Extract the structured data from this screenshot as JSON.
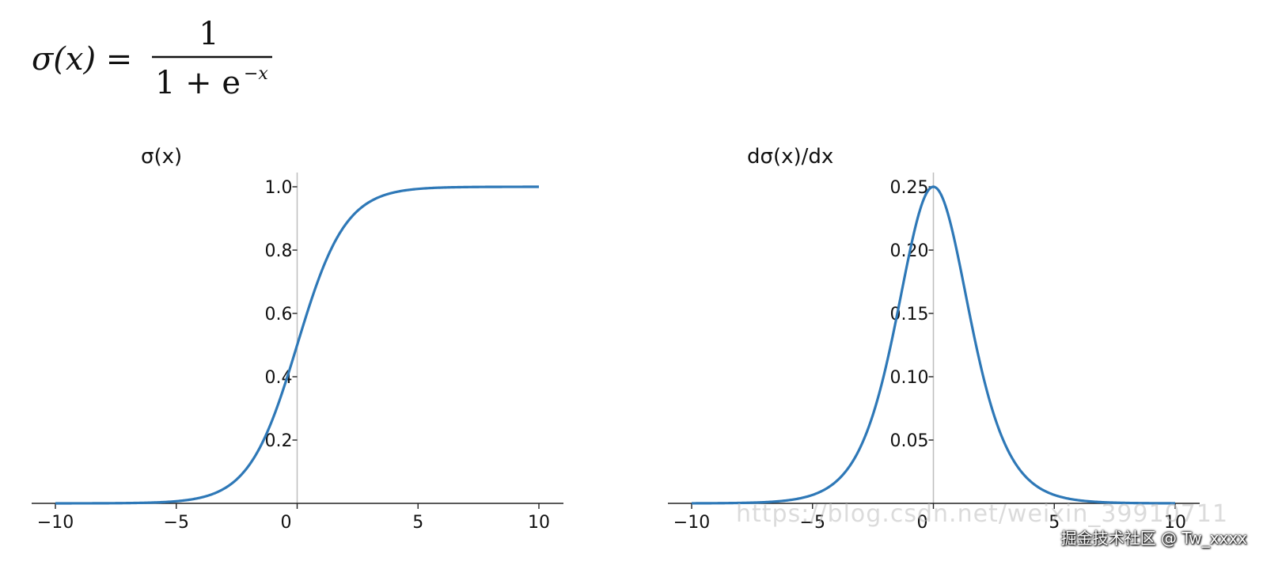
{
  "formula": {
    "lhs": "σ(x) =",
    "numerator": "1",
    "denominator_base": "1 + e",
    "denominator_exp": "−x"
  },
  "chart_data": [
    {
      "type": "line",
      "title": "σ(x)",
      "function": "sigmoid",
      "xlim": [
        -10,
        10
      ],
      "ylim": [
        0,
        1.05
      ],
      "x_ticks": [
        -10,
        -5,
        0,
        5,
        10
      ],
      "x_tick_labels": [
        "−10",
        "−5",
        "0",
        "5",
        "10"
      ],
      "y_ticks": [
        0.2,
        0.4,
        0.6,
        0.8,
        1.0
      ],
      "y_tick_labels": [
        "0.2",
        "0.4",
        "0.6",
        "0.8",
        "1.0"
      ],
      "series": [
        {
          "color": "#2e78b7",
          "x": [
            -10,
            -8,
            -6,
            -5,
            -4,
            -3,
            -2,
            -1,
            0,
            1,
            2,
            3,
            4,
            5,
            6,
            8,
            10
          ],
          "y": [
            4.54e-05,
            0.000335,
            0.00247,
            0.00669,
            0.018,
            0.0474,
            0.1192,
            0.2689,
            0.5,
            0.7311,
            0.8808,
            0.9526,
            0.982,
            0.9933,
            0.9975,
            0.99966,
            0.99995
          ]
        }
      ]
    },
    {
      "type": "line",
      "title": "dσ(x)/dx",
      "function": "sigmoid_derivative",
      "xlim": [
        -10,
        10
      ],
      "ylim": [
        0,
        0.263
      ],
      "x_ticks": [
        -10,
        -5,
        0,
        5,
        10
      ],
      "x_tick_labels": [
        "−10",
        "−5",
        "0",
        "5",
        "10"
      ],
      "y_ticks": [
        0.05,
        0.1,
        0.15,
        0.2,
        0.25
      ],
      "y_tick_labels": [
        "0.05",
        "0.10",
        "0.15",
        "0.20",
        "0.25"
      ],
      "series": [
        {
          "color": "#2e78b7",
          "x": [
            -10,
            -8,
            -6,
            -5,
            -4,
            -3,
            -2,
            -1,
            0,
            1,
            2,
            3,
            4,
            5,
            6,
            8,
            10
          ],
          "y": [
            4.54e-05,
            0.000335,
            0.00247,
            0.00665,
            0.0177,
            0.0452,
            0.105,
            0.1966,
            0.25,
            0.1966,
            0.105,
            0.0452,
            0.0177,
            0.00665,
            0.00247,
            0.000335,
            4.54e-05
          ]
        }
      ]
    }
  ],
  "watermark": "https://blog.csdn.net/weixin_39910711",
  "credit": "掘金技术社区 @ Tw_xxxx"
}
